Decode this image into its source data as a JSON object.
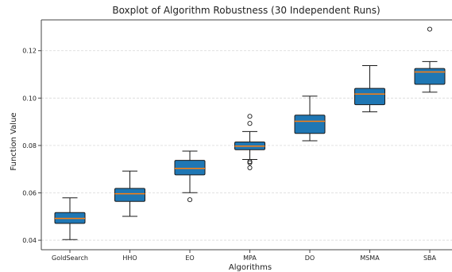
{
  "chart_data": {
    "type": "boxplot",
    "title": "Boxplot of Algorithm Robustness (30 Independent Runs)",
    "xlabel": "Algorithms",
    "ylabel": "Function Value",
    "ylim": [
      0.036,
      0.133
    ],
    "yticks": [
      0.04,
      0.06,
      0.08,
      0.1,
      0.12
    ],
    "ytick_labels": [
      "0.04",
      "0.06",
      "0.08",
      "0.10",
      "0.12"
    ],
    "grid": "horizontal-dashed",
    "box_color": "#1f77b4",
    "median_color": "#ff7f0e",
    "categories": [
      "GoldSearch",
      "HHO",
      "EO",
      "MPA",
      "DO",
      "MSMA",
      "SBA"
    ],
    "boxes": [
      {
        "whislo": 0.0403,
        "q1": 0.0471,
        "med": 0.0492,
        "q3": 0.0517,
        "whishi": 0.0579,
        "fliers": []
      },
      {
        "whislo": 0.0501,
        "q1": 0.0564,
        "med": 0.0596,
        "q3": 0.0619,
        "whishi": 0.0692,
        "fliers": []
      },
      {
        "whislo": 0.0601,
        "q1": 0.0676,
        "med": 0.0703,
        "q3": 0.0737,
        "whishi": 0.0776,
        "fliers": [
          0.0571
        ]
      },
      {
        "whislo": 0.0741,
        "q1": 0.0782,
        "med": 0.0797,
        "q3": 0.0815,
        "whishi": 0.0859,
        "fliers": [
          0.0923,
          0.0893,
          0.0732,
          0.0727,
          0.0706
        ]
      },
      {
        "whislo": 0.082,
        "q1": 0.0851,
        "med": 0.0902,
        "q3": 0.0928,
        "whishi": 0.1008,
        "fliers": []
      },
      {
        "whislo": 0.0942,
        "q1": 0.0972,
        "med": 0.1017,
        "q3": 0.1041,
        "whishi": 0.1137,
        "fliers": []
      },
      {
        "whislo": 0.1025,
        "q1": 0.1058,
        "med": 0.111,
        "q3": 0.1125,
        "whishi": 0.1154,
        "fliers": [
          0.1291
        ]
      }
    ]
  }
}
